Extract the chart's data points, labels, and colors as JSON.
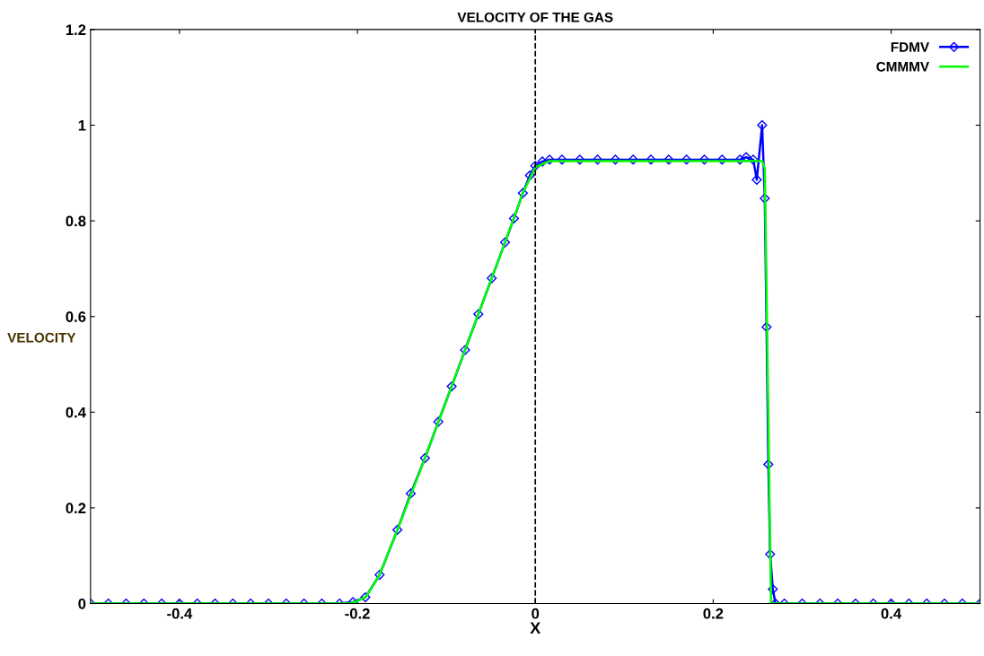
{
  "chart_data": {
    "type": "line",
    "title": "VELOCITY OF THE GAS",
    "xlabel": "X",
    "ylabel": "VELOCITY",
    "xlim": [
      -0.5,
      0.5
    ],
    "xticks": [
      -0.4,
      -0.2,
      0,
      0.2,
      0.4
    ],
    "ylim": [
      0,
      1.2
    ],
    "yticks": [
      0,
      0.2,
      0.4,
      0.6,
      0.8,
      1,
      1.2
    ],
    "grid": false,
    "legend": "top right",
    "ref_lines": [
      {
        "axis": "x",
        "value": 0,
        "color": "#000000",
        "line_style": "dashed"
      }
    ],
    "series": [
      {
        "name": "FDMV",
        "color": "#0000ff",
        "marker": "diamond",
        "line_style": "solid",
        "x": [
          -0.5,
          -0.48,
          -0.46,
          -0.44,
          -0.42,
          -0.4,
          -0.38,
          -0.36,
          -0.34,
          -0.32,
          -0.3,
          -0.28,
          -0.26,
          -0.24,
          -0.22,
          -0.205,
          -0.191,
          -0.175,
          -0.155,
          -0.14,
          -0.124,
          -0.109,
          -0.094,
          -0.079,
          -0.064,
          -0.049,
          -0.034,
          -0.024,
          -0.014,
          -0.006,
          0,
          0.008,
          0.016,
          0.03,
          0.05,
          0.07,
          0.09,
          0.11,
          0.13,
          0.15,
          0.17,
          0.19,
          0.21,
          0.23,
          0.237,
          0.245,
          0.249,
          0.255,
          0.258,
          0.26,
          0.262,
          0.264,
          0.267,
          0.27,
          0.28,
          0.3,
          0.32,
          0.34,
          0.36,
          0.38,
          0.4,
          0.42,
          0.44,
          0.46,
          0.48,
          0.5
        ],
        "values": [
          0,
          0,
          0,
          0,
          0,
          0,
          0,
          0,
          0,
          0,
          0,
          0,
          0,
          0,
          0,
          0.003,
          0.013,
          0.06,
          0.154,
          0.23,
          0.304,
          0.38,
          0.454,
          0.53,
          0.605,
          0.68,
          0.755,
          0.805,
          0.858,
          0.895,
          0.915,
          0.924,
          0.928,
          0.928,
          0.928,
          0.928,
          0.928,
          0.928,
          0.928,
          0.928,
          0.928,
          0.928,
          0.928,
          0.928,
          0.933,
          0.928,
          0.886,
          1.0,
          0.847,
          0.578,
          0.291,
          0.103,
          0.03,
          0,
          0,
          0,
          0,
          0,
          0,
          0,
          0,
          0,
          0,
          0,
          0,
          0
        ]
      },
      {
        "name": "CMMMV",
        "color": "#00ff00",
        "marker": "none",
        "line_style": "solid",
        "x": [
          -0.5,
          -0.21,
          -0.2,
          -0.19,
          -0.175,
          -0.155,
          -0.124,
          -0.064,
          -0.034,
          -0.014,
          0,
          0.016,
          0.255,
          0.258,
          0.265,
          0.5
        ],
        "values": [
          0,
          0,
          0.005,
          0.015,
          0.06,
          0.154,
          0.304,
          0.605,
          0.755,
          0.858,
          0.912,
          0.925,
          0.925,
          0.91,
          0,
          0
        ]
      }
    ]
  }
}
